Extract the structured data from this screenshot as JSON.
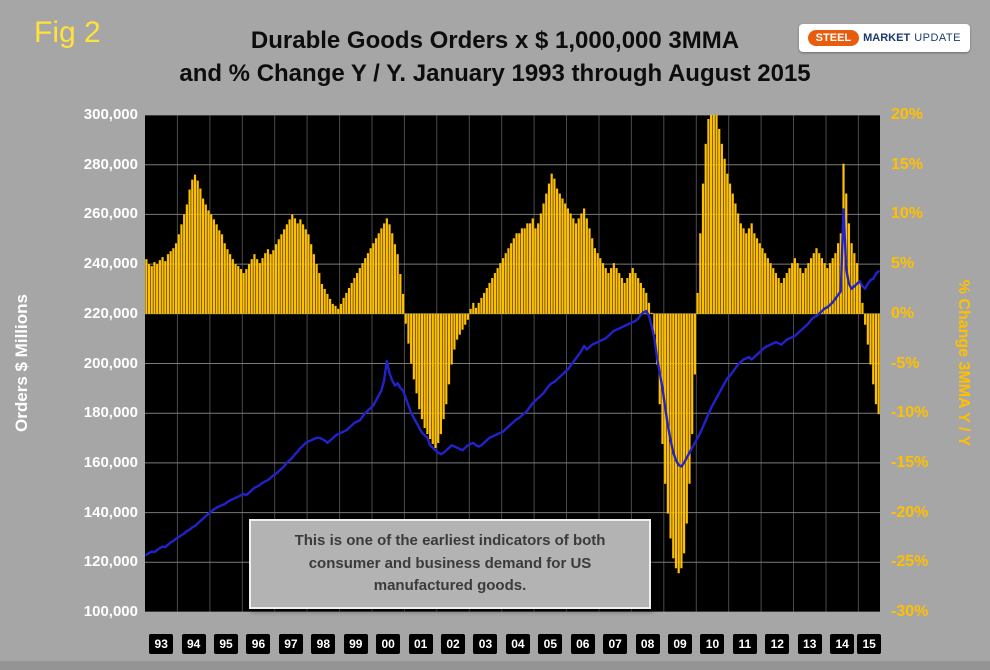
{
  "header": {
    "fig_label": "Fig 2",
    "title_line1": "Durable Goods Orders x $ 1,000,000 3MMA",
    "title_line2": "and % Change Y / Y. January 1993 through August 2015"
  },
  "logo": {
    "steel": "STEEL",
    "market": "MARKET",
    "update": "UPDATE"
  },
  "annotation": {
    "line1": "This is one of the earliest indicators of both",
    "line2": "consumer and business demand for US",
    "line3": "manufactured goods."
  },
  "chart_data": {
    "type": "bar",
    "subtype": "combo bar + line, monthly Jan 1993 - Aug 2015",
    "title": "Durable Goods Orders x $ 1,000,000 3MMA and % Change Y / Y. January 1993 through August 2015",
    "left_axis": {
      "label": "Orders $ Millions",
      "min": 100000,
      "max": 300000,
      "tick_step": 20000,
      "ticks": [
        300000,
        280000,
        260000,
        240000,
        220000,
        200000,
        180000,
        160000,
        140000,
        120000,
        100000
      ]
    },
    "right_axis": {
      "label": "% Change 3MMA Y / Y",
      "min": -30,
      "max": 20,
      "tick_step": 5,
      "ticks": [
        20,
        15,
        10,
        5,
        0,
        -5,
        -10,
        -15,
        -20,
        -25,
        -30
      ]
    },
    "x_axis": {
      "years": [
        {
          "label": "93",
          "months": 12
        },
        {
          "label": "94",
          "months": 12
        },
        {
          "label": "95",
          "months": 12
        },
        {
          "label": "96",
          "months": 12
        },
        {
          "label": "97",
          "months": 12
        },
        {
          "label": "98",
          "months": 12
        },
        {
          "label": "99",
          "months": 12
        },
        {
          "label": "00",
          "months": 12
        },
        {
          "label": "01",
          "months": 12
        },
        {
          "label": "02",
          "months": 12
        },
        {
          "label": "03",
          "months": 12
        },
        {
          "label": "04",
          "months": 12
        },
        {
          "label": "05",
          "months": 12
        },
        {
          "label": "06",
          "months": 12
        },
        {
          "label": "07",
          "months": 12
        },
        {
          "label": "08",
          "months": 12
        },
        {
          "label": "09",
          "months": 12
        },
        {
          "label": "10",
          "months": 12
        },
        {
          "label": "11",
          "months": 12
        },
        {
          "label": "12",
          "months": 12
        },
        {
          "label": "13",
          "months": 12
        },
        {
          "label": "14",
          "months": 12
        },
        {
          "label": "15",
          "months": 8
        }
      ]
    },
    "colors": {
      "plot_bg": "#000000",
      "grid": "#7a7a7a",
      "grid_vertical": "#4a4a4a",
      "bar": "#ffc000",
      "line": "#2222cc"
    },
    "series": [
      {
        "name": "Durable Goods Orders 3MMA ($ Millions)",
        "type": "line",
        "axis": "left",
        "color": "#2222cc",
        "values": [
          123000,
          123800,
          124300,
          124100,
          125000,
          125700,
          126300,
          126100,
          127100,
          128000,
          128600,
          129500,
          130200,
          130900,
          131600,
          132600,
          133100,
          134100,
          134600,
          135600,
          136600,
          137600,
          138600,
          139600,
          140400,
          141300,
          142000,
          142500,
          143000,
          143400,
          144300,
          144900,
          145400,
          145900,
          146400,
          147000,
          147500,
          147100,
          148000,
          149000,
          150000,
          150500,
          151100,
          152000,
          152500,
          153100,
          154000,
          155000,
          155600,
          156600,
          157600,
          158700,
          160000,
          161100,
          162100,
          163500,
          164600,
          166000,
          167000,
          168100,
          168600,
          169100,
          169600,
          170100,
          170100,
          169600,
          169000,
          168100,
          169000,
          170000,
          171000,
          171600,
          172100,
          172600,
          173100,
          174100,
          175100,
          176100,
          176600,
          177100,
          178600,
          180100,
          181100,
          182100,
          183100,
          185100,
          187100,
          189100,
          193100,
          201000,
          196100,
          193100,
          191100,
          192100,
          190100,
          189100,
          186100,
          183100,
          180100,
          178100,
          176100,
          174100,
          172100,
          171100,
          170100,
          167100,
          166100,
          165100,
          164100,
          163500,
          164100,
          165100,
          166100,
          167100,
          166600,
          166100,
          165600,
          165100,
          166100,
          167100,
          167600,
          168100,
          167100,
          166600,
          167100,
          168100,
          169100,
          170100,
          170600,
          171100,
          171600,
          172100,
          172600,
          173600,
          174600,
          175600,
          176600,
          177600,
          178100,
          179100,
          180100,
          181100,
          182600,
          184100,
          185100,
          186100,
          187100,
          188100,
          189600,
          191100,
          192100,
          192600,
          193600,
          194600,
          195600,
          196600,
          197600,
          199100,
          200600,
          202100,
          203600,
          205100,
          207100,
          205600,
          206600,
          207600,
          208100,
          208600,
          209100,
          209600,
          210100,
          211100,
          212100,
          213100,
          213600,
          214100,
          214600,
          215100,
          215600,
          216100,
          216600,
          217100,
          218100,
          219600,
          220600,
          221100,
          219100,
          215100,
          210100,
          202100,
          196100,
          190100,
          182100,
          175100,
          169100,
          164100,
          161100,
          159100,
          158600,
          160100,
          162100,
          164100,
          166100,
          168100,
          170100,
          172100,
          174600,
          177100,
          179600,
          182100,
          184100,
          186100,
          188100,
          190100,
          192100,
          194100,
          195100,
          196600,
          198100,
          199600,
          200600,
          201600,
          202100,
          202600,
          201600,
          202600,
          203600,
          204600,
          205600,
          206600,
          207100,
          207600,
          208100,
          208600,
          208100,
          207600,
          208600,
          209600,
          210100,
          210600,
          211100,
          212100,
          213100,
          214100,
          215100,
          216100,
          217600,
          218600,
          219100,
          220100,
          221100,
          222100,
          222600,
          223600,
          224600,
          226100,
          227600,
          229100,
          262000,
          238100,
          232100,
          230100,
          231100,
          232100,
          233100,
          231100,
          230100,
          232100,
          233600,
          234100,
          236100,
          237100
        ]
      },
      {
        "name": "% Change 3MMA Y / Y",
        "type": "bar",
        "axis": "right",
        "color": "#ffc000",
        "values": [
          5.5,
          5.0,
          4.8,
          5.2,
          5.0,
          5.4,
          5.7,
          5.3,
          6.0,
          6.3,
          6.6,
          7.1,
          8.0,
          9.0,
          10.0,
          11.0,
          12.5,
          13.5,
          14.0,
          13.4,
          12.6,
          11.6,
          11.0,
          10.4,
          10.0,
          9.5,
          9.0,
          8.4,
          8.0,
          7.1,
          6.5,
          6.0,
          5.5,
          5.0,
          4.8,
          4.5,
          4.1,
          4.5,
          5.0,
          5.5,
          6.0,
          5.5,
          5.1,
          5.6,
          6.1,
          6.5,
          6.0,
          6.4,
          7.0,
          7.5,
          8.0,
          8.5,
          9.0,
          9.5,
          10.0,
          9.6,
          9.1,
          9.5,
          9.0,
          8.5,
          8.0,
          7.0,
          6.0,
          5.0,
          4.1,
          3.0,
          2.5,
          2.0,
          1.5,
          1.0,
          0.8,
          0.5,
          1.0,
          1.6,
          2.1,
          2.6,
          3.1,
          3.6,
          4.1,
          4.6,
          5.1,
          5.6,
          6.1,
          6.6,
          7.1,
          7.6,
          8.1,
          8.6,
          9.1,
          9.6,
          9.0,
          8.1,
          7.0,
          6.0,
          4.0,
          2.0,
          -1.0,
          -3.0,
          -5.0,
          -6.6,
          -8.0,
          -9.6,
          -10.6,
          -11.5,
          -12.1,
          -12.6,
          -13.1,
          -13.5,
          -13.0,
          -12.1,
          -10.6,
          -9.1,
          -7.1,
          -5.1,
          -3.6,
          -2.6,
          -2.1,
          -1.6,
          -1.1,
          -0.6,
          0.5,
          1.1,
          0.6,
          1.1,
          1.6,
          2.1,
          2.6,
          3.1,
          3.6,
          4.1,
          4.6,
          5.1,
          5.6,
          6.1,
          6.6,
          7.1,
          7.6,
          8.1,
          8.1,
          8.6,
          8.6,
          9.1,
          9.1,
          9.6,
          8.6,
          9.1,
          10.1,
          11.1,
          12.1,
          13.1,
          14.1,
          13.6,
          12.6,
          12.1,
          11.6,
          11.1,
          10.6,
          10.1,
          9.6,
          9.1,
          9.6,
          10.1,
          10.6,
          9.6,
          8.6,
          7.6,
          6.6,
          6.1,
          5.6,
          5.1,
          4.6,
          4.1,
          4.6,
          5.1,
          4.6,
          4.1,
          3.6,
          3.1,
          3.6,
          4.1,
          4.6,
          4.1,
          3.6,
          3.1,
          2.6,
          2.1,
          1.1,
          0.1,
          -2.1,
          -5.1,
          -9.1,
          -13.1,
          -17.1,
          -20.1,
          -22.6,
          -24.6,
          -25.6,
          -26.1,
          -25.6,
          -24.1,
          -21.1,
          -17.1,
          -12.1,
          -6.1,
          2.1,
          8.1,
          13.1,
          17.1,
          19.6,
          20.6,
          21.1,
          20.1,
          18.6,
          17.1,
          15.6,
          14.1,
          13.1,
          12.1,
          11.1,
          10.1,
          9.1,
          8.6,
          8.1,
          8.6,
          9.1,
          8.1,
          7.6,
          7.1,
          6.6,
          6.1,
          5.6,
          5.1,
          4.6,
          4.1,
          3.6,
          3.1,
          3.6,
          4.1,
          4.6,
          5.1,
          5.6,
          5.1,
          4.6,
          4.1,
          4.6,
          5.1,
          5.6,
          6.1,
          6.6,
          6.1,
          5.6,
          5.1,
          4.6,
          5.1,
          5.6,
          6.1,
          7.1,
          8.1,
          15.1,
          12.1,
          9.1,
          7.1,
          6.1,
          5.1,
          3.1,
          1.1,
          -1.1,
          -3.1,
          -5.1,
          -7.1,
          -9.1,
          -10.1
        ]
      }
    ]
  }
}
